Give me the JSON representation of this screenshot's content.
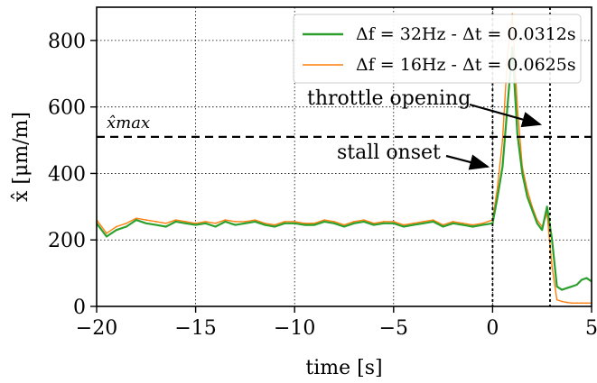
{
  "chart_data": {
    "type": "line",
    "xlabel": "time [s]",
    "ylabel": "x̂ [μm/m]",
    "xlim": [
      -20,
      5
    ],
    "ylim": [
      0,
      900
    ],
    "xticks": [
      -20,
      -15,
      -10,
      -5,
      0,
      5
    ],
    "yticks": [
      0,
      200,
      400,
      600,
      800
    ],
    "xtick_labels": [
      "−20",
      "−15",
      "−10",
      "−5",
      "0",
      "5"
    ],
    "ytick_labels": [
      "0",
      "200",
      "400",
      "600",
      "800"
    ],
    "grid": true,
    "legend": "top-right",
    "threshold": {
      "label": "x̂max",
      "value": 510,
      "style": "dashed"
    },
    "events": [
      {
        "label": "stall onset",
        "x": 0.0
      },
      {
        "label": "throttle opening",
        "x": 2.9
      }
    ],
    "series": [
      {
        "name": "Δf = 32Hz - Δt = 0.0312s",
        "color": "#2ca02c",
        "x": [
          -20,
          -19.5,
          -19,
          -18.5,
          -18,
          -17.5,
          -17,
          -16.5,
          -16,
          -15.5,
          -15,
          -14.5,
          -14,
          -13.5,
          -13,
          -12.5,
          -12,
          -11.5,
          -11,
          -10.5,
          -10,
          -9.5,
          -9,
          -8.5,
          -8,
          -7.5,
          -7,
          -6.5,
          -6,
          -5.5,
          -5,
          -4.5,
          -4,
          -3.5,
          -3,
          -2.5,
          -2,
          -1.5,
          -1,
          -0.5,
          0,
          0.25,
          0.5,
          0.75,
          1,
          1.25,
          1.5,
          1.75,
          2,
          2.25,
          2.5,
          2.75,
          3,
          3.25,
          3.5,
          3.75,
          4,
          4.25,
          4.5,
          4.75,
          5
        ],
        "y": [
          250,
          210,
          230,
          240,
          260,
          250,
          245,
          240,
          255,
          250,
          245,
          250,
          240,
          255,
          245,
          250,
          255,
          245,
          240,
          250,
          250,
          245,
          245,
          255,
          250,
          240,
          250,
          255,
          245,
          250,
          250,
          240,
          245,
          250,
          255,
          240,
          250,
          245,
          240,
          245,
          250,
          330,
          420,
          600,
          780,
          520,
          400,
          330,
          290,
          250,
          230,
          300,
          200,
          60,
          50,
          55,
          60,
          65,
          80,
          85,
          75
        ]
      },
      {
        "name": "Δf = 16Hz - Δt = 0.0625s",
        "color": "#ff7f0e",
        "x": [
          -20,
          -19.5,
          -19,
          -18.5,
          -18,
          -17.5,
          -17,
          -16.5,
          -16,
          -15.5,
          -15,
          -14.5,
          -14,
          -13.5,
          -13,
          -12.5,
          -12,
          -11.5,
          -11,
          -10.5,
          -10,
          -9.5,
          -9,
          -8.5,
          -8,
          -7.5,
          -7,
          -6.5,
          -6,
          -5.5,
          -5,
          -4.5,
          -4,
          -3.5,
          -3,
          -2.5,
          -2,
          -1.5,
          -1,
          -0.5,
          0,
          0.25,
          0.5,
          0.75,
          1,
          1.25,
          1.5,
          1.75,
          2,
          2.25,
          2.5,
          2.75,
          3,
          3.25,
          3.5,
          3.75,
          4,
          4.25,
          4.5,
          4.75,
          5
        ],
        "y": [
          260,
          220,
          240,
          250,
          265,
          260,
          255,
          250,
          260,
          255,
          250,
          255,
          250,
          260,
          255,
          255,
          260,
          250,
          245,
          255,
          255,
          250,
          250,
          260,
          255,
          245,
          255,
          260,
          250,
          255,
          255,
          245,
          250,
          255,
          260,
          245,
          255,
          250,
          245,
          250,
          260,
          360,
          500,
          750,
          880,
          600,
          420,
          350,
          300,
          260,
          240,
          280,
          120,
          20,
          15,
          12,
          10,
          10,
          10,
          10,
          10
        ]
      }
    ]
  }
}
